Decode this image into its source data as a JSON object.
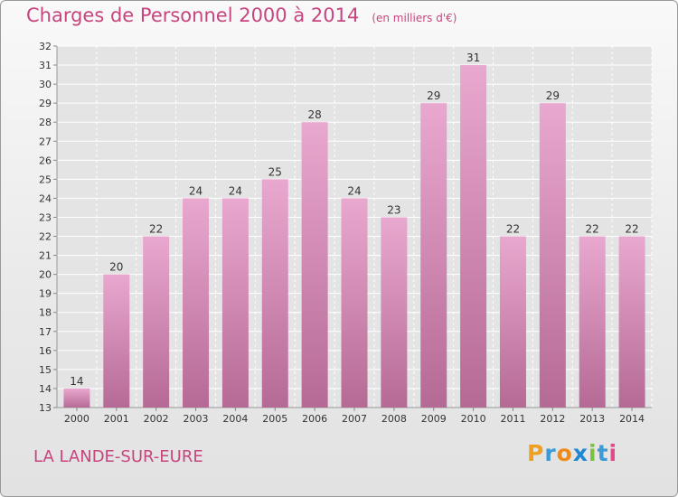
{
  "header": {
    "title": "Charges de Personnel 2000 à 2014",
    "subtitle": "(en milliers d'€)"
  },
  "commune": "LA LANDE-SUR-EURE",
  "logo": "Proxiti",
  "colors": {
    "title": "#c7457e",
    "bar_top": "#e9a8cf",
    "bar_bottom": "#b56a95"
  },
  "chart_data": {
    "type": "bar",
    "categories": [
      "2000",
      "2001",
      "2002",
      "2003",
      "2004",
      "2005",
      "2006",
      "2007",
      "2008",
      "2009",
      "2010",
      "2011",
      "2012",
      "2013",
      "2014"
    ],
    "values": [
      14,
      20,
      22,
      24,
      24,
      25,
      28,
      24,
      23,
      29,
      31,
      22,
      29,
      22,
      22
    ],
    "title": "Charges de Personnel 2000 à 2014",
    "subtitle": "(en milliers d'€)",
    "ylim": [
      13,
      32
    ],
    "yticks": [
      13,
      14,
      15,
      16,
      17,
      18,
      19,
      20,
      21,
      22,
      23,
      24,
      25,
      26,
      27,
      28,
      29,
      30,
      31,
      32
    ],
    "grid": true,
    "legend": "none"
  }
}
